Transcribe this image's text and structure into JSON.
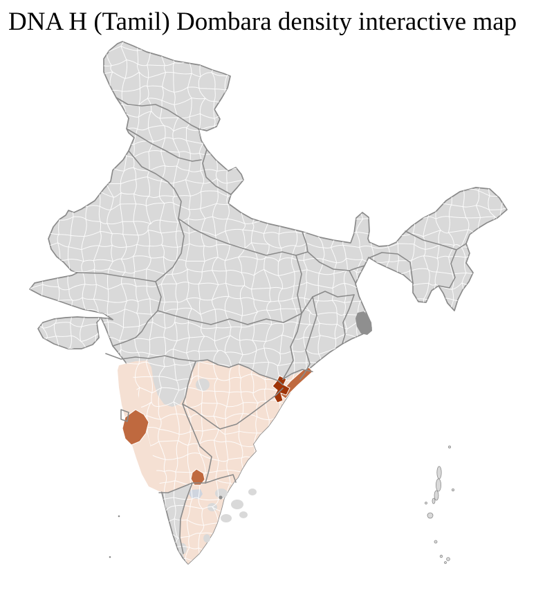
{
  "header": {
    "title": "DNA H (Tamil) Dombara density interactive map"
  },
  "map": {
    "subject": "District-level choropleth map of India",
    "colors": {
      "sea": "#ffffff",
      "district_fill": "#d9d9d9",
      "district_border": "#ffffff",
      "state_border": "#8a8a8a",
      "density_low": "#f5e0d3",
      "density_medium": "#bf693f",
      "density_high": "#a03508",
      "delta_marsh": "#8f8f8f",
      "city_district": "#cfd5df"
    },
    "regions": {
      "low_density_block": "Contiguous shaded districts across southern India",
      "medium_density_count": 3,
      "high_density_count": 1,
      "unshaded": "All other districts"
    }
  }
}
